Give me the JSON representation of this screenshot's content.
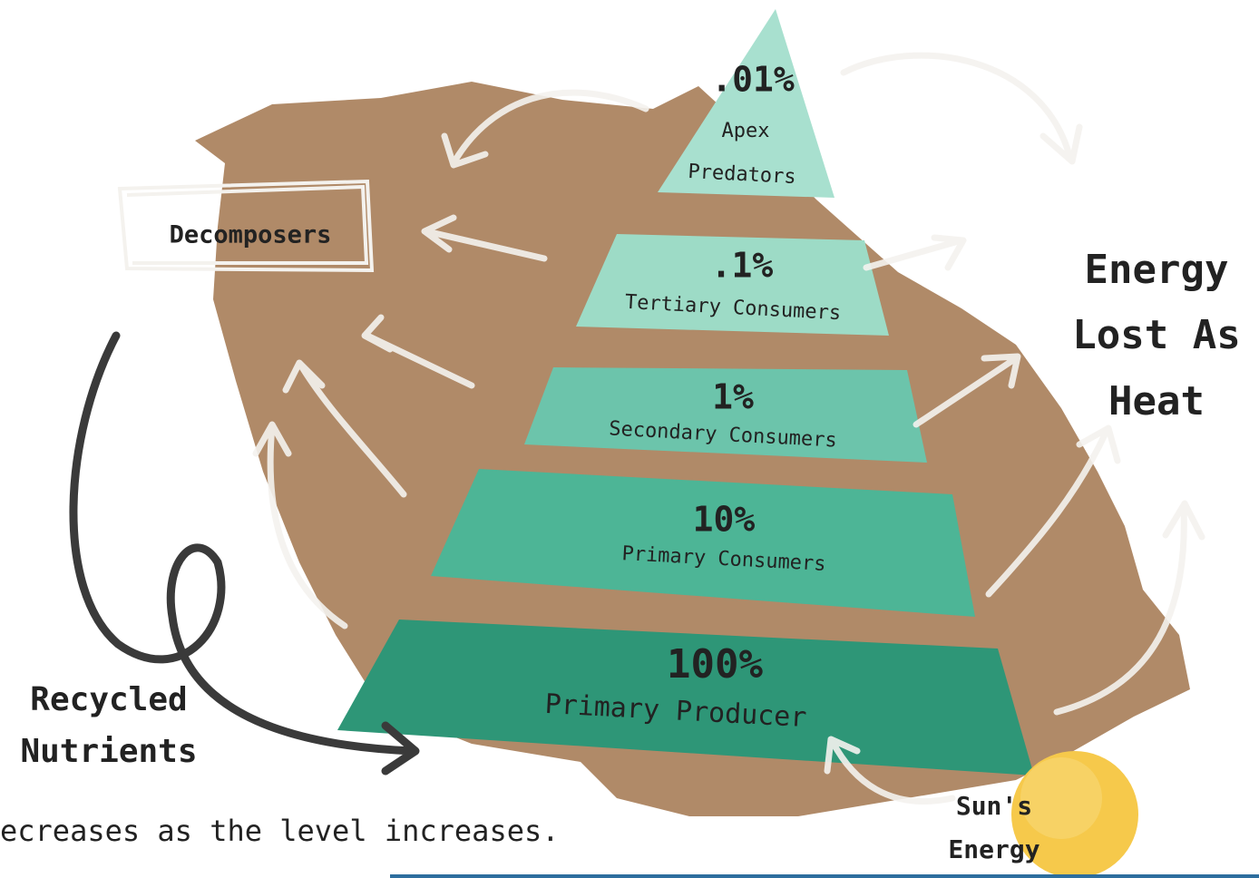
{
  "levels": [
    {
      "percent": "100%",
      "label": [
        "Primary Producer"
      ]
    },
    {
      "percent": "10%",
      "label": [
        "Primary Consumers"
      ]
    },
    {
      "percent": "1%",
      "label": [
        "Secondary Consumers"
      ]
    },
    {
      "percent": ".1%",
      "label": [
        "Tertiary Consumers"
      ]
    },
    {
      "percent": ".01%",
      "label": [
        "Apex",
        "Predators"
      ]
    }
  ],
  "decomposers": "Decomposers",
  "energy_lost": [
    "Energy",
    "Lost As",
    "Heat"
  ],
  "recycled": [
    "Recycled",
    "Nutrients"
  ],
  "sun": [
    "Sun's",
    "Energy"
  ],
  "caption": "ecreases as the level increases."
}
